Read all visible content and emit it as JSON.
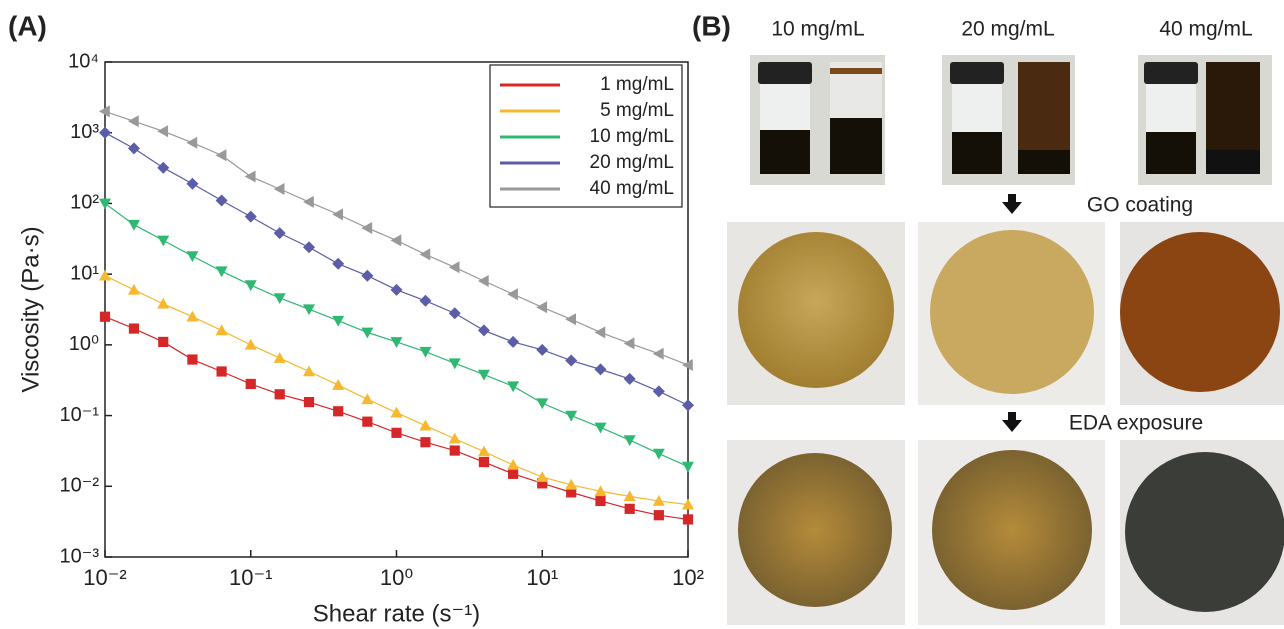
{
  "chart_data": {
    "type": "line",
    "panel_label": "(A)",
    "x_label": "Shear rate (s⁻¹)",
    "y_label": "Viscosity (Pa·s)",
    "log_x": true,
    "log_y": true,
    "grid": false,
    "legend": "upper right",
    "xlim": [
      0.01,
      100
    ],
    "ylim": [
      0.001,
      10000
    ],
    "xticks": [
      {
        "value": 0.01,
        "label": "10⁻²"
      },
      {
        "value": 0.1,
        "label": "10⁻¹"
      },
      {
        "value": 1,
        "label": "10⁰"
      },
      {
        "value": 10,
        "label": "10¹"
      },
      {
        "value": 100,
        "label": "10²"
      }
    ],
    "yticks": [
      {
        "value": 0.001,
        "label": "10⁻³"
      },
      {
        "value": 0.01,
        "label": "10⁻²"
      },
      {
        "value": 0.1,
        "label": "10⁻¹"
      },
      {
        "value": 1,
        "label": "10⁰"
      },
      {
        "value": 10,
        "label": "10¹"
      },
      {
        "value": 100,
        "label": "10²"
      },
      {
        "value": 1000,
        "label": "10³"
      },
      {
        "value": 10000,
        "label": "10⁴"
      }
    ],
    "x": [
      0.01,
      0.0158,
      0.0251,
      0.0398,
      0.0631,
      0.1,
      0.158,
      0.251,
      0.398,
      0.631,
      1,
      1.58,
      2.51,
      3.98,
      6.31,
      10,
      15.8,
      25.1,
      39.8,
      63.1,
      100
    ],
    "series": [
      {
        "name": "1 mg/mL",
        "color": "#d62728",
        "marker": "square",
        "values": [
          2.5,
          1.7,
          1.1,
          0.62,
          0.42,
          0.28,
          0.2,
          0.155,
          0.115,
          0.082,
          0.057,
          0.042,
          0.032,
          0.022,
          0.015,
          0.011,
          0.0082,
          0.0062,
          0.0048,
          0.0039,
          0.0034
        ]
      },
      {
        "name": "5 mg/mL",
        "color": "#f5b82e",
        "marker": "triangle-up",
        "values": [
          9.5,
          6.0,
          3.8,
          2.5,
          1.6,
          1.0,
          0.65,
          0.42,
          0.27,
          0.17,
          0.11,
          0.072,
          0.047,
          0.031,
          0.02,
          0.0135,
          0.0105,
          0.0085,
          0.0072,
          0.0062,
          0.0055
        ]
      },
      {
        "name": "10 mg/mL",
        "color": "#2eb872",
        "marker": "triangle-down",
        "values": [
          100,
          50,
          30,
          18,
          11,
          7,
          4.6,
          3.2,
          2.2,
          1.5,
          1.1,
          0.8,
          0.55,
          0.38,
          0.26,
          0.15,
          0.1,
          0.068,
          0.045,
          0.029,
          0.019
        ]
      },
      {
        "name": "20 mg/mL",
        "color": "#5b5ea6",
        "marker": "diamond",
        "values": [
          1000,
          600,
          320,
          190,
          110,
          65,
          38,
          24,
          14,
          9.5,
          6,
          4.2,
          2.8,
          1.6,
          1.1,
          0.85,
          0.6,
          0.45,
          0.33,
          0.22,
          0.14
        ]
      },
      {
        "name": "40 mg/mL",
        "color": "#999999",
        "marker": "triangle-left",
        "values": [
          2000,
          1450,
          1050,
          720,
          480,
          240,
          160,
          105,
          70,
          45,
          30,
          19,
          12.5,
          8,
          5.2,
          3.4,
          2.3,
          1.5,
          1.05,
          0.75,
          0.52
        ]
      }
    ]
  },
  "panel_b": {
    "label": "(B)",
    "concentrations": [
      "10 mg/mL",
      "20 mg/mL",
      "40 mg/mL"
    ],
    "steps": [
      "GO coating",
      "EDA exposure"
    ]
  }
}
